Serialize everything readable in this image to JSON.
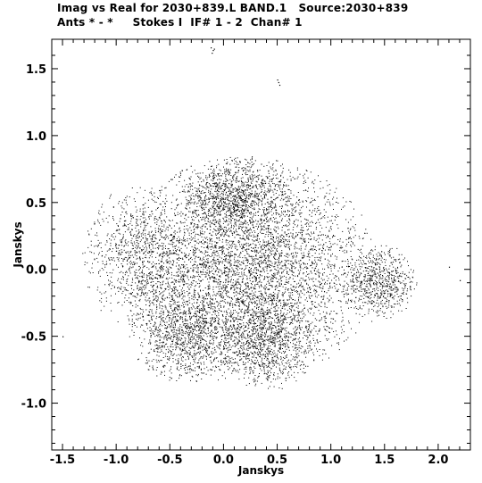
{
  "header": {
    "line1": "Imag vs Real for 2030+839.L BAND.1   Source:2030+839",
    "line2": "Ants * - *     Stokes I  IF# 1 - 2  Chan# 1"
  },
  "chart_data": {
    "type": "scatter",
    "title": "Imag vs Real for 2030+839.L BAND.1   Source:2030+839",
    "subtitle": "Ants * - *     Stokes I  IF# 1 - 2  Chan# 1",
    "xlabel": "Janskys",
    "ylabel": "Janskys",
    "xlim": [
      -1.6,
      2.3
    ],
    "ylim": [
      -1.35,
      1.72
    ],
    "x_ticks": [
      -1.5,
      -1.0,
      -0.5,
      0.0,
      0.5,
      1.0,
      1.5,
      2.0
    ],
    "x_tick_labels": [
      "-1.5",
      "-1.0",
      "-0.5",
      "0.0",
      "0.5",
      "1.0",
      "1.5",
      "2.0"
    ],
    "y_ticks": [
      -1.0,
      -0.5,
      0.0,
      0.5,
      1.0,
      1.5
    ],
    "y_tick_labels": [
      "-1.0",
      "-0.5",
      "0.0",
      "0.5",
      "1.0",
      "1.5"
    ],
    "grid": false,
    "point_color": "#000000",
    "point_count": 9000,
    "clusters": [
      {
        "cx": 0.2,
        "cy": 0.0,
        "rx": 1.05,
        "ry": 0.72,
        "weight": 0.55
      },
      {
        "cx": 0.1,
        "cy": 0.55,
        "rx": 0.45,
        "ry": 0.25,
        "weight": 0.1
      },
      {
        "cx": -0.35,
        "cy": -0.5,
        "rx": 0.45,
        "ry": 0.3,
        "weight": 0.1
      },
      {
        "cx": 0.4,
        "cy": -0.55,
        "rx": 0.4,
        "ry": 0.3,
        "weight": 0.09
      },
      {
        "cx": 1.45,
        "cy": -0.1,
        "rx": 0.3,
        "ry": 0.25,
        "weight": 0.07
      },
      {
        "cx": -0.8,
        "cy": 0.1,
        "rx": 0.45,
        "ry": 0.45,
        "weight": 0.09
      }
    ],
    "outliers": [
      {
        "x": -0.12,
        "y": 1.66
      },
      {
        "x": -0.1,
        "y": 1.64
      },
      {
        "x": -0.09,
        "y": 1.65
      },
      {
        "x": -0.11,
        "y": 1.62
      },
      {
        "x": 0.5,
        "y": 1.42
      },
      {
        "x": 0.52,
        "y": 1.38
      },
      {
        "x": 0.51,
        "y": 1.4
      },
      {
        "x": 2.2,
        "y": -0.08
      },
      {
        "x": 2.1,
        "y": 0.02
      },
      {
        "x": -1.5,
        "y": -0.5
      }
    ]
  }
}
